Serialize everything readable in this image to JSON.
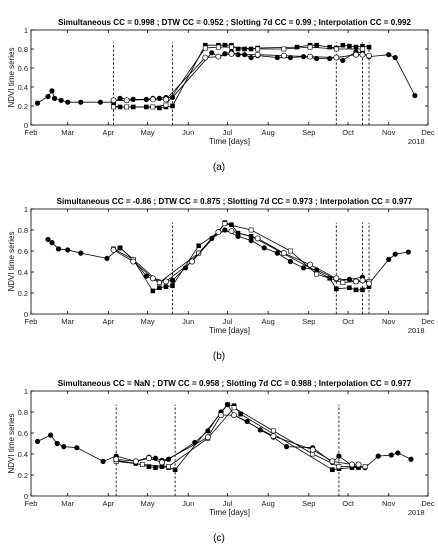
{
  "chart_data": [
    {
      "type": "line",
      "panel_label": "(a)",
      "title": "Simultaneous CC = 0.998 ; DTW CC = 0.952 ; Slotting 7d CC = 0.99 ; Interpolation CC = 0.992",
      "xlabel": "Time [days]",
      "ylabel": "NDVI time series",
      "ylim": [
        0,
        1
      ],
      "yticks": [
        "0",
        "0.2",
        "0.4",
        "0.6",
        "0.8",
        "1"
      ],
      "xticks": [
        "Feb",
        "Mar",
        "Apr",
        "May",
        "Jun",
        "Jul",
        "Aug",
        "Sep",
        "Oct",
        "Nov",
        "Dec"
      ],
      "year_label": "2018",
      "x_range": [
        "2018-02-01",
        "2018-12-01"
      ],
      "grid": false,
      "series": [
        {
          "marker": "filled-circle",
          "style": "solid",
          "x": [
            "2018-02-06",
            "2018-02-14",
            "2018-02-17",
            "2018-02-19",
            "2018-02-24",
            "2018-03-01",
            "2018-03-11",
            "2018-03-26",
            "2018-04-05",
            "2018-04-10",
            "2018-04-20",
            "2018-04-30",
            "2018-05-05",
            "2018-05-10",
            "2018-05-15",
            "2018-05-20",
            "2018-06-19",
            "2018-06-24",
            "2018-06-29",
            "2018-07-04",
            "2018-07-09",
            "2018-07-14",
            "2018-07-19",
            "2018-07-24",
            "2018-08-08",
            "2018-08-18",
            "2018-08-28",
            "2018-09-07",
            "2018-09-17",
            "2018-09-22",
            "2018-09-27",
            "2018-10-07",
            "2018-10-12",
            "2018-10-17",
            "2018-11-01",
            "2018-11-06",
            "2018-11-21"
          ],
          "y": [
            0.23,
            0.3,
            0.36,
            0.28,
            0.26,
            0.24,
            0.24,
            0.24,
            0.24,
            0.28,
            0.27,
            0.27,
            0.28,
            0.28,
            0.29,
            0.29,
            0.76,
            0.72,
            0.75,
            0.77,
            0.74,
            0.74,
            0.71,
            0.73,
            0.71,
            0.71,
            0.72,
            0.7,
            0.7,
            0.71,
            0.68,
            0.77,
            0.76,
            0.72,
            0.74,
            0.71,
            0.31
          ]
        },
        {
          "marker": "filled-square",
          "style": "solid",
          "x": [
            "2018-04-05",
            "2018-04-10",
            "2018-04-20",
            "2018-04-30",
            "2018-05-10",
            "2018-05-15",
            "2018-05-20",
            "2018-06-14",
            "2018-06-24",
            "2018-06-29",
            "2018-07-04",
            "2018-07-09",
            "2018-07-14",
            "2018-07-19",
            "2018-07-24",
            "2018-08-23",
            "2018-09-02",
            "2018-09-07",
            "2018-09-17",
            "2018-09-22",
            "2018-09-27",
            "2018-10-02",
            "2018-10-07",
            "2018-10-12",
            "2018-10-17"
          ],
          "y": [
            0.2,
            0.19,
            0.19,
            0.19,
            0.18,
            0.19,
            0.2,
            0.84,
            0.84,
            0.84,
            0.84,
            0.8,
            0.8,
            0.8,
            0.81,
            0.82,
            0.84,
            0.84,
            0.82,
            0.81,
            0.84,
            0.83,
            0.82,
            0.83,
            0.82
          ]
        },
        {
          "marker": "open-square",
          "style": "solid",
          "x": [
            "2018-04-05",
            "2018-04-15",
            "2018-05-05",
            "2018-05-15",
            "2018-06-14",
            "2018-06-24",
            "2018-07-04",
            "2018-07-24",
            "2018-08-13",
            "2018-09-02",
            "2018-09-22",
            "2018-10-12"
          ],
          "y": [
            0.19,
            0.19,
            0.19,
            0.21,
            0.81,
            0.82,
            0.82,
            0.8,
            0.8,
            0.82,
            0.8,
            0.8
          ]
        },
        {
          "marker": "open-circle",
          "style": "solid",
          "x": [
            "2018-04-05",
            "2018-04-15",
            "2018-05-05",
            "2018-05-15",
            "2018-06-14",
            "2018-06-24",
            "2018-07-04",
            "2018-07-24",
            "2018-08-13",
            "2018-09-02",
            "2018-09-22",
            "2018-10-07",
            "2018-10-12",
            "2018-10-17"
          ],
          "y": [
            0.26,
            0.26,
            0.27,
            0.27,
            0.71,
            0.72,
            0.75,
            0.74,
            0.73,
            0.72,
            0.71,
            0.74,
            0.74,
            0.73
          ]
        }
      ],
      "dashed_vlines": [
        "2018-04-05",
        "2018-05-20",
        "2018-09-22",
        "2018-10-12",
        "2018-10-17"
      ]
    },
    {
      "type": "line",
      "panel_label": "(b)",
      "title": "Simultaneous CC = -0.86 ; DTW CC = 0.875 ; Slotting 7d CC = 0.973 ; Interpolation CC = 0.977",
      "xlabel": "Time [days]",
      "ylabel": "NDVI time series",
      "ylim": [
        0,
        1
      ],
      "yticks": [
        "0",
        "0.2",
        "0.4",
        "0.6",
        "0.8",
        "1"
      ],
      "xticks": [
        "Feb",
        "Mar",
        "Apr",
        "May",
        "Jun",
        "Jul",
        "Aug",
        "Sep",
        "Oct",
        "Nov",
        "Dec"
      ],
      "year_label": "2018",
      "x_range": [
        "2018-02-01",
        "2018-12-01"
      ],
      "grid": false,
      "series": [
        {
          "marker": "filled-circle",
          "style": "solid",
          "x": [
            "2018-02-14",
            "2018-02-17",
            "2018-02-22",
            "2018-03-01",
            "2018-03-11",
            "2018-03-31",
            "2018-04-10",
            "2018-04-20",
            "2018-04-30",
            "2018-05-10",
            "2018-05-20",
            "2018-05-30",
            "2018-06-09",
            "2018-06-19",
            "2018-06-29",
            "2018-07-09",
            "2018-07-19",
            "2018-07-29",
            "2018-08-08",
            "2018-08-18",
            "2018-08-28",
            "2018-09-07",
            "2018-09-22",
            "2018-10-02",
            "2018-10-12",
            "2018-10-17",
            "2018-11-01",
            "2018-11-06",
            "2018-11-16"
          ],
          "y": [
            0.71,
            0.68,
            0.62,
            0.61,
            0.58,
            0.53,
            0.63,
            0.52,
            0.36,
            0.3,
            0.32,
            0.44,
            0.58,
            0.72,
            0.8,
            0.74,
            0.7,
            0.63,
            0.58,
            0.5,
            0.44,
            0.42,
            0.33,
            0.33,
            0.35,
            0.29,
            0.52,
            0.57,
            0.59
          ]
        },
        {
          "marker": "filled-square",
          "style": "solid",
          "x": [
            "2018-04-10",
            "2018-04-20",
            "2018-05-05",
            "2018-05-10",
            "2018-05-15",
            "2018-05-20",
            "2018-06-09",
            "2018-06-24",
            "2018-06-29",
            "2018-07-04",
            "2018-07-09",
            "2018-07-19",
            "2018-09-17",
            "2018-09-22",
            "2018-10-02",
            "2018-10-07",
            "2018-10-12",
            "2018-10-17"
          ],
          "y": [
            0.63,
            0.52,
            0.22,
            0.25,
            0.26,
            0.27,
            0.65,
            0.78,
            0.87,
            0.85,
            0.77,
            0.74,
            0.34,
            0.24,
            0.25,
            0.23,
            0.23,
            0.26
          ]
        },
        {
          "marker": "open-square",
          "style": "solid",
          "x": [
            "2018-04-05",
            "2018-04-20",
            "2018-05-10",
            "2018-06-09",
            "2018-06-29",
            "2018-07-19",
            "2018-08-18",
            "2018-09-07",
            "2018-09-27",
            "2018-10-07",
            "2018-10-17"
          ],
          "y": [
            0.62,
            0.52,
            0.3,
            0.58,
            0.86,
            0.8,
            0.6,
            0.38,
            0.3,
            0.31,
            0.31
          ]
        },
        {
          "marker": "open-circle",
          "style": "solid",
          "x": [
            "2018-04-05",
            "2018-04-20",
            "2018-05-05",
            "2018-05-15",
            "2018-06-04",
            "2018-06-24",
            "2018-07-04",
            "2018-07-24",
            "2018-08-13",
            "2018-09-02",
            "2018-09-22",
            "2018-10-07",
            "2018-10-12",
            "2018-10-17"
          ],
          "y": [
            0.61,
            0.5,
            0.34,
            0.31,
            0.5,
            0.78,
            0.79,
            0.72,
            0.58,
            0.47,
            0.34,
            0.31,
            0.32,
            0.29
          ]
        }
      ],
      "dashed_vlines": [
        "2018-05-20",
        "2018-09-22",
        "2018-10-12",
        "2018-10-17"
      ]
    },
    {
      "type": "line",
      "panel_label": "(c)",
      "title": "Simultaneous CC = NaN ; DTW CC = 0.958 ; Slotting 7d CC = 0.988 ; Interpolation CC = 0.977",
      "xlabel": "Time [days]",
      "ylabel": "NDVI time series",
      "ylim": [
        0,
        1
      ],
      "yticks": [
        "0",
        "0.2",
        "0.4",
        "0.6",
        "0.8",
        "1"
      ],
      "xticks": [
        "Feb",
        "Mar",
        "Apr",
        "May",
        "Jun",
        "Jul",
        "Aug",
        "Sep",
        "Oct",
        "Nov",
        "Dec"
      ],
      "year_label": "2018",
      "x_range": [
        "2018-02-01",
        "2018-12-01"
      ],
      "grid": false,
      "series": [
        {
          "marker": "filled-circle",
          "style": "solid",
          "x": [
            "2018-02-06",
            "2018-02-16",
            "2018-02-21",
            "2018-02-26",
            "2018-03-08",
            "2018-03-28",
            "2018-04-07",
            "2018-04-22",
            "2018-05-02",
            "2018-05-07",
            "2018-05-12",
            "2018-05-17",
            "2018-06-06",
            "2018-06-16",
            "2018-06-26",
            "2018-07-01",
            "2018-07-06",
            "2018-07-16",
            "2018-07-26",
            "2018-08-05",
            "2018-08-15",
            "2018-09-04",
            "2018-09-19",
            "2018-09-24",
            "2018-10-04",
            "2018-10-14",
            "2018-10-24",
            "2018-11-03",
            "2018-11-08",
            "2018-11-18"
          ],
          "y": [
            0.52,
            0.58,
            0.5,
            0.47,
            0.46,
            0.33,
            0.38,
            0.33,
            0.37,
            0.36,
            0.34,
            0.35,
            0.51,
            0.62,
            0.8,
            0.87,
            0.77,
            0.71,
            0.63,
            0.56,
            0.47,
            0.46,
            0.32,
            0.38,
            0.29,
            0.27,
            0.38,
            0.39,
            0.41,
            0.35
          ]
        },
        {
          "marker": "filled-square",
          "style": "solid",
          "x": [
            "2018-04-07",
            "2018-04-22",
            "2018-05-02",
            "2018-05-07",
            "2018-05-12",
            "2018-05-17",
            "2018-05-22",
            "2018-06-26",
            "2018-07-01",
            "2018-07-06",
            "2018-07-11",
            "2018-09-19",
            "2018-09-24",
            "2018-10-04",
            "2018-10-09"
          ],
          "y": [
            0.34,
            0.31,
            0.28,
            0.27,
            0.28,
            0.27,
            0.25,
            0.79,
            0.87,
            0.86,
            0.78,
            0.25,
            0.26,
            0.27,
            0.27
          ]
        },
        {
          "marker": "open-square",
          "style": "solid",
          "x": [
            "2018-04-07",
            "2018-04-27",
            "2018-05-17",
            "2018-06-16",
            "2018-07-06",
            "2018-08-05",
            "2018-09-04",
            "2018-09-24",
            "2018-10-14"
          ],
          "y": [
            0.33,
            0.3,
            0.28,
            0.55,
            0.84,
            0.62,
            0.4,
            0.28,
            0.28
          ]
        },
        {
          "marker": "open-circle",
          "style": "solid",
          "x": [
            "2018-04-07",
            "2018-04-22",
            "2018-05-02",
            "2018-05-12",
            "2018-06-16",
            "2018-06-26",
            "2018-07-06",
            "2018-08-05",
            "2018-09-04",
            "2018-09-19",
            "2018-10-04",
            "2018-10-09"
          ],
          "y": [
            0.35,
            0.33,
            0.36,
            0.32,
            0.56,
            0.77,
            0.77,
            0.57,
            0.44,
            0.33,
            0.3,
            0.3
          ]
        }
      ],
      "dashed_vlines": [
        "2018-04-07",
        "2018-05-22",
        "2018-09-24"
      ]
    }
  ]
}
